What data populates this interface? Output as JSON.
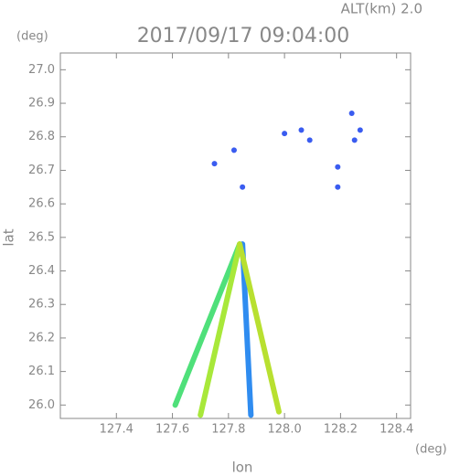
{
  "chart_data": {
    "type": "scatter",
    "title": "2017/09/17 09:04:00",
    "subtitle": "ALT(km) 2.0",
    "x_label": "lon",
    "y_label": "lat",
    "x_unit": "(deg)",
    "y_unit": "(deg)",
    "xlim": [
      127.2,
      128.45
    ],
    "ylim": [
      25.96,
      27.05
    ],
    "xticks": [
      127.4,
      127.6,
      127.8,
      {
        "value": 128,
        "label": "128.0"
      },
      128.2,
      128.4
    ],
    "yticks": [
      {
        "value": 26,
        "label": "26.0"
      },
      26.1,
      26.2,
      26.3,
      26.4,
      26.5,
      26.6,
      26.7,
      26.8,
      26.9,
      {
        "value": 27,
        "label": "27.0"
      }
    ],
    "color": "#3a5cf0",
    "x": [
      128.24,
      128.27,
      128.25,
      128.0,
      128.06,
      128.09,
      128.19,
      128.19,
      127.82,
      127.75,
      127.85
    ],
    "y": [
      26.87,
      26.82,
      26.79,
      26.81,
      26.82,
      26.79,
      26.71,
      26.65,
      26.76,
      26.72,
      26.65
    ],
    "beams": [
      {
        "color": "#4fe07a",
        "x": [
          127.84,
          127.61
        ],
        "y": [
          26.48,
          26.0
        ]
      },
      {
        "color": "#a8e83a",
        "x": [
          127.84,
          127.7
        ],
        "y": [
          26.48,
          25.97
        ]
      },
      {
        "color": "#2f8cf0",
        "x": [
          127.85,
          127.88
        ],
        "y": [
          26.48,
          25.97
        ]
      },
      {
        "color": "#b8e030",
        "x": [
          127.84,
          127.98
        ],
        "y": [
          26.48,
          25.98
        ]
      }
    ]
  }
}
